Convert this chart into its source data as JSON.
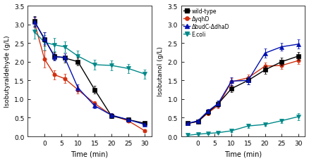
{
  "time": [
    -3,
    0,
    3,
    6,
    10,
    15,
    20,
    25,
    30
  ],
  "left_ylabel": "Isobutyraldehyde (g/L)",
  "left_ylim": [
    0,
    3.5
  ],
  "left_yticks": [
    0.0,
    0.5,
    1.0,
    1.5,
    2.0,
    2.5,
    3.0,
    3.5
  ],
  "wildtype_ald": [
    3.08,
    2.6,
    2.15,
    2.1,
    2.0,
    1.25,
    0.55,
    0.45,
    0.35
  ],
  "yqhD_ald": [
    3.05,
    2.07,
    1.65,
    1.55,
    1.25,
    0.88,
    0.57,
    0.42,
    0.15
  ],
  "budC_ald": [
    3.07,
    2.62,
    2.13,
    2.12,
    1.3,
    0.82,
    0.57,
    0.45,
    0.32
  ],
  "ecoli_ald": [
    2.8,
    2.52,
    2.45,
    2.4,
    2.15,
    1.92,
    1.9,
    1.82,
    1.67
  ],
  "wildtype_ald_err": [
    0.13,
    0.18,
    0.1,
    0.12,
    0.1,
    0.1,
    0.06,
    0.05,
    0.04
  ],
  "yqhD_ald_err": [
    0.13,
    0.22,
    0.12,
    0.12,
    0.1,
    0.07,
    0.05,
    0.04,
    0.03
  ],
  "budC_ald_err": [
    0.13,
    0.16,
    0.1,
    0.1,
    0.1,
    0.07,
    0.05,
    0.04,
    0.03
  ],
  "ecoli_ald_err": [
    0.18,
    0.2,
    0.18,
    0.15,
    0.15,
    0.13,
    0.13,
    0.12,
    0.12
  ],
  "right_ylabel": "Isobutanol (g/L)",
  "right_ylim": [
    0,
    3.5
  ],
  "right_yticks": [
    0.0,
    0.5,
    1.0,
    1.5,
    2.0,
    2.5,
    3.0,
    3.5
  ],
  "wildtype_but": [
    0.35,
    0.4,
    0.65,
    0.87,
    1.28,
    1.5,
    1.78,
    2.0,
    2.15
  ],
  "yqhD_but": [
    0.35,
    0.4,
    0.63,
    0.83,
    1.46,
    1.57,
    1.88,
    1.9,
    2.03
  ],
  "budC_but": [
    0.35,
    0.42,
    0.68,
    0.88,
    1.48,
    1.5,
    2.23,
    2.4,
    2.47
  ],
  "ecoli_but": [
    0.03,
    0.06,
    0.08,
    0.1,
    0.15,
    0.28,
    0.32,
    0.42,
    0.53
  ],
  "wildtype_but_err": [
    0.04,
    0.04,
    0.06,
    0.08,
    0.1,
    0.1,
    0.1,
    0.1,
    0.1
  ],
  "yqhD_but_err": [
    0.04,
    0.04,
    0.06,
    0.08,
    0.1,
    0.08,
    0.1,
    0.1,
    0.1
  ],
  "budC_but_err": [
    0.04,
    0.04,
    0.06,
    0.08,
    0.1,
    0.1,
    0.12,
    0.1,
    0.12
  ],
  "ecoli_but_err": [
    0.02,
    0.02,
    0.02,
    0.03,
    0.04,
    0.05,
    0.04,
    0.06,
    0.1
  ],
  "color_wildtype": "#000000",
  "color_yqhD": "#d03010",
  "color_budC": "#0010b0",
  "color_ecoli": "#008888",
  "xlabel": "Time (min)",
  "xticks": [
    0,
    5,
    10,
    15,
    20,
    25,
    30
  ],
  "xlim": [
    -5,
    32
  ],
  "legend_labels": [
    "wild-type",
    "ΔyqhD",
    "ΔbudC-ΔdhaD",
    "E.coli"
  ],
  "background": "#ffffff"
}
